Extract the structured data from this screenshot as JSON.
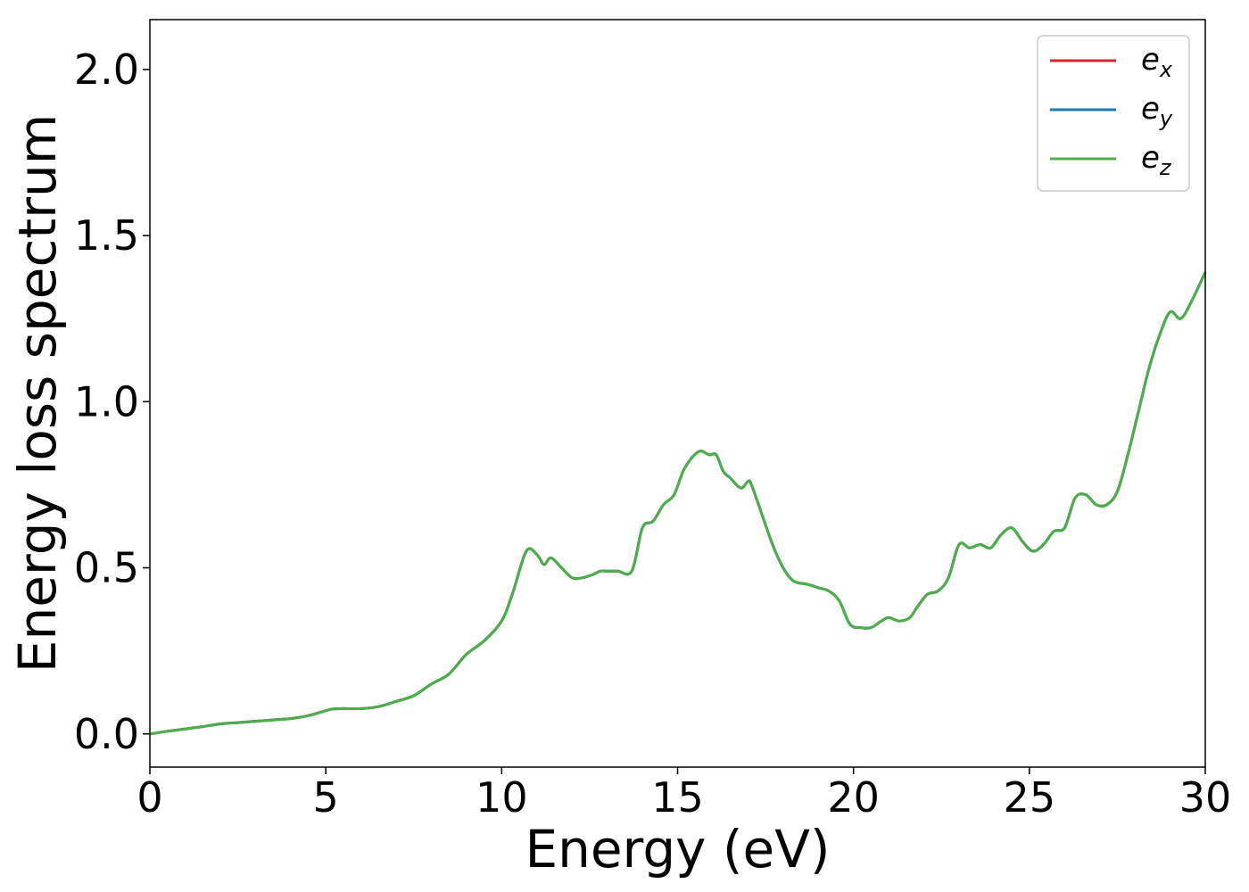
{
  "chart_data": {
    "type": "line",
    "xlabel": "Energy (eV)",
    "ylabel": "Energy loss spectrum",
    "xlim": [
      0,
      30
    ],
    "ylim": [
      -0.1,
      2.15
    ],
    "xticks": [
      0,
      5,
      10,
      15,
      20,
      25,
      30
    ],
    "yticks": [
      0.0,
      0.5,
      1.0,
      1.5,
      2.0
    ],
    "xtick_labels": [
      "0",
      "5",
      "10",
      "15",
      "20",
      "25",
      "30"
    ],
    "ytick_labels": [
      "0.0",
      "0.5",
      "1.0",
      "1.5",
      "2.0"
    ],
    "grid": false,
    "legend_position": "top-right",
    "x": [
      0,
      0.5,
      1,
      1.5,
      2,
      2.5,
      3,
      3.5,
      4,
      4.5,
      5,
      5.2,
      5.5,
      6,
      6.5,
      7,
      7.5,
      8,
      8.5,
      9,
      9.5,
      10,
      10.3,
      10.7,
      11,
      11.2,
      11.4,
      11.7,
      12,
      12.3,
      12.6,
      12.8,
      13,
      13.3,
      13.7,
      14,
      14.3,
      14.6,
      14.9,
      15.2,
      15.6,
      15.9,
      16.1,
      16.3,
      16.5,
      16.8,
      17,
      17.1,
      17.4,
      17.7,
      18,
      18.3,
      18.7,
      19,
      19.3,
      19.6,
      19.9,
      20.2,
      20.5,
      20.8,
      21,
      21.3,
      21.6,
      21.8,
      22.1,
      22.4,
      22.7,
      23,
      23.3,
      23.6,
      23.9,
      24.2,
      24.5,
      24.8,
      25.1,
      25.4,
      25.7,
      26,
      26.3,
      26.6,
      26.9,
      27.2,
      27.5,
      27.8,
      28.1,
      28.4,
      28.7,
      29,
      29.3,
      29.6,
      30
    ],
    "y_shared": [
      0.0,
      0.008,
      0.015,
      0.022,
      0.03,
      0.034,
      0.038,
      0.042,
      0.046,
      0.055,
      0.07,
      0.075,
      0.076,
      0.076,
      0.082,
      0.098,
      0.115,
      0.15,
      0.18,
      0.24,
      0.28,
      0.34,
      0.42,
      0.55,
      0.54,
      0.51,
      0.53,
      0.5,
      0.47,
      0.47,
      0.48,
      0.49,
      0.49,
      0.49,
      0.49,
      0.62,
      0.64,
      0.69,
      0.72,
      0.8,
      0.85,
      0.84,
      0.84,
      0.79,
      0.77,
      0.74,
      0.76,
      0.75,
      0.66,
      0.57,
      0.5,
      0.46,
      0.45,
      0.44,
      0.43,
      0.4,
      0.33,
      0.32,
      0.32,
      0.34,
      0.35,
      0.34,
      0.35,
      0.38,
      0.42,
      0.43,
      0.47,
      0.57,
      0.56,
      0.57,
      0.56,
      0.6,
      0.62,
      0.58,
      0.55,
      0.57,
      0.61,
      0.62,
      0.71,
      0.72,
      0.69,
      0.69,
      0.73,
      0.84,
      0.97,
      1.1,
      1.2,
      1.27,
      1.25,
      1.3,
      1.39
    ],
    "series": [
      {
        "name": "e",
        "subscript": "x",
        "color": "#d62728"
      },
      {
        "name": "e",
        "subscript": "y",
        "color": "#1f77b4"
      },
      {
        "name": "e",
        "subscript": "z",
        "color": "#4daf4a"
      }
    ]
  }
}
